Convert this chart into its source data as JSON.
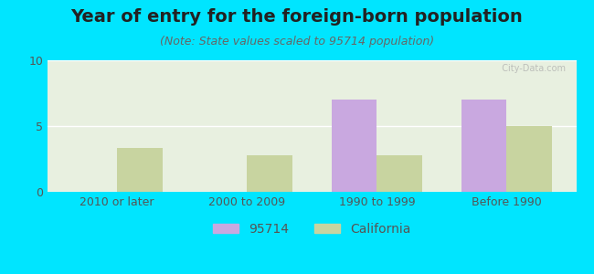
{
  "title": "Year of entry for the foreign-born population",
  "subtitle": "(Note: State values scaled to 95714 population)",
  "categories": [
    "2010 or later",
    "2000 to 2009",
    "1990 to 1999",
    "Before 1990"
  ],
  "values_95714": [
    0,
    0,
    7.0,
    7.0
  ],
  "values_california": [
    3.3,
    2.8,
    2.8,
    5.0
  ],
  "color_95714": "#c9a8e0",
  "color_california": "#c8d4a0",
  "background_outer": "#00e5ff",
  "background_plot": "#e8f0e0",
  "background_plot_top": "#f5f5f0",
  "ylim": [
    0,
    10
  ],
  "yticks": [
    0,
    5,
    10
  ],
  "bar_width": 0.35,
  "legend_95714": "95714",
  "legend_california": "California",
  "title_fontsize": 14,
  "subtitle_fontsize": 9,
  "tick_fontsize": 9,
  "legend_fontsize": 10
}
